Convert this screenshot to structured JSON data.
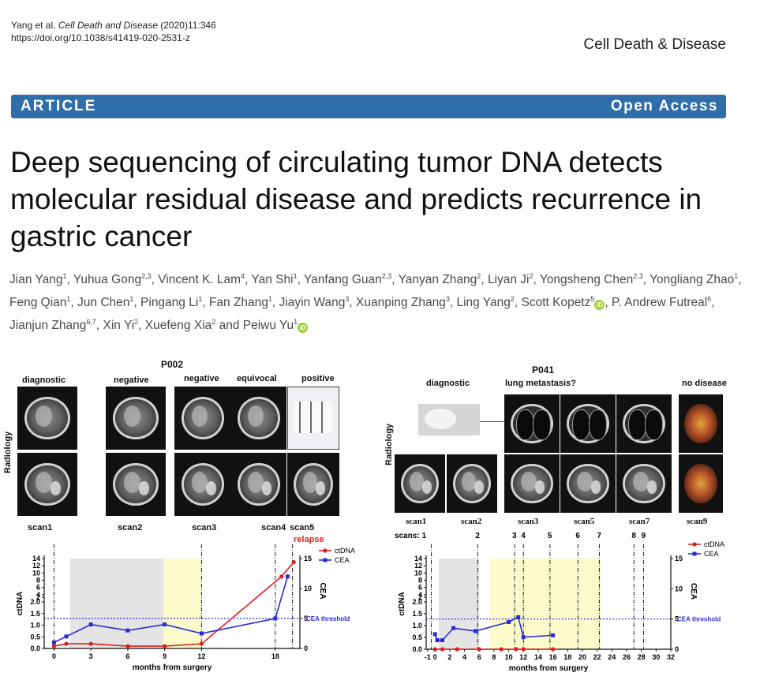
{
  "header": {
    "citation_authors": "Yang et al.",
    "citation_journal": "Cell Death and Disease",
    "citation_details": "(2020)11:346",
    "doi": "https://doi.org/10.1038/s41419-020-2531-z",
    "journal_name": "Cell Death & Disease"
  },
  "banner": {
    "article_type": "ARTICLE",
    "access": "Open Access"
  },
  "title": "Deep sequencing of circulating tumor DNA detects molecular residual disease and predicts recurrence in gastric cancer",
  "authors": [
    {
      "name": "Jian Yang",
      "aff": "1"
    },
    {
      "name": "Yuhua Gong",
      "aff": "2,3"
    },
    {
      "name": "Vincent K. Lam",
      "aff": "4"
    },
    {
      "name": "Yan Shi",
      "aff": "1"
    },
    {
      "name": "Yanfang Guan",
      "aff": "2,3"
    },
    {
      "name": "Yanyan Zhang",
      "aff": "2"
    },
    {
      "name": "Liyan Ji",
      "aff": "2"
    },
    {
      "name": "Yongsheng Chen",
      "aff": "2,3"
    },
    {
      "name": "Yongliang Zhao",
      "aff": "1"
    },
    {
      "name": "Feng Qian",
      "aff": "1"
    },
    {
      "name": "Jun Chen",
      "aff": "1"
    },
    {
      "name": "Pingang Li",
      "aff": "1"
    },
    {
      "name": "Fan Zhang",
      "aff": "1"
    },
    {
      "name": "Jiayin Wang",
      "aff": "3"
    },
    {
      "name": "Xuanping Zhang",
      "aff": "3"
    },
    {
      "name": "Ling Yang",
      "aff": "2"
    },
    {
      "name": "Scott Kopetz",
      "aff": "5",
      "orcid": true
    },
    {
      "name": "P. Andrew Futreal",
      "aff": "6"
    },
    {
      "name": "Jianjun Zhang",
      "aff": "6,7"
    },
    {
      "name": "Xin Yi",
      "aff": "2"
    },
    {
      "name": "Xuefeng Xia",
      "aff": "2"
    },
    {
      "name": "Peiwu Yu",
      "aff": "1",
      "orcid": true
    }
  ],
  "figure": {
    "orcid_glyph": "iD",
    "left": {
      "patient": "P002",
      "radiology_label": "Radiology",
      "statuses": [
        "diagnostic",
        "negative",
        "negative",
        "equivocal",
        "positive"
      ],
      "scans": [
        "scan1",
        "scan2",
        "scan3",
        "scan4",
        "scan5"
      ],
      "relapse_label": "relapse"
    },
    "right": {
      "patient": "P041",
      "radiology_label": "Radiology",
      "statuses": [
        "diagnostic",
        "lung metastasis?",
        "no disease"
      ],
      "scans": [
        "scan1",
        "scan2",
        "scan3",
        "scan5",
        "scan7",
        "scan9"
      ],
      "scans_prefix": "scans: 1",
      "scan_numbers": [
        "2",
        "3",
        "4",
        "5",
        "6",
        "7",
        "8",
        "9"
      ]
    }
  },
  "chart_data": [
    {
      "type": "line",
      "title": "P002",
      "xlabel": "months from surgery",
      "ylabel": "ctDNA",
      "y2label": "CEA",
      "x_ticks": [
        0,
        3,
        6,
        9,
        12,
        18
      ],
      "y_ticks": [
        "0.0",
        "0.5",
        "1.0",
        "1.5",
        "2.0",
        "2",
        "4",
        "6",
        "8",
        "10",
        "12",
        "14"
      ],
      "y2_ticks": [
        0,
        5,
        10,
        15
      ],
      "threshold_label": "CEA threshold",
      "threshold_value": 5,
      "legend": [
        "ctDNA",
        "CEA"
      ],
      "legend_position": "top-right",
      "series": [
        {
          "name": "ctDNA",
          "color": "#e01e1e",
          "x": [
            0,
            1,
            3,
            6,
            9,
            12,
            18.5,
            19.5
          ],
          "y": [
            0.1,
            0.2,
            0.2,
            0.1,
            0.1,
            0.2,
            9,
            13
          ]
        },
        {
          "name": "CEA",
          "color": "#2b2bd6",
          "x": [
            0,
            1,
            3,
            6,
            9,
            12,
            18,
            19
          ],
          "y": [
            1,
            2,
            4,
            3,
            4,
            2.5,
            5,
            12
          ]
        }
      ]
    },
    {
      "type": "line",
      "title": "P041",
      "xlabel": "months from surgery",
      "ylabel": "ctDNA",
      "y2label": "CEA",
      "x_ticks": [
        -1,
        2,
        5,
        8,
        11,
        14,
        17,
        20,
        23,
        26,
        29,
        32
      ],
      "x_ticks_printed": [
        "-1",
        "0",
        "2",
        "4",
        "6",
        "8",
        "10",
        "12",
        "14",
        "16",
        "18",
        "20",
        "22",
        "24",
        "26",
        "28",
        "30",
        "32"
      ],
      "y_ticks": [
        "0.0",
        "0.5",
        "1.0",
        "1.5",
        "2.0",
        "2",
        "4",
        "6",
        "8",
        "10",
        "12",
        "14"
      ],
      "y2_ticks": [
        0,
        5,
        10,
        15
      ],
      "threshold_label": "CEA threshold",
      "threshold_value": 5,
      "legend": [
        "ctDNA",
        "CEA"
      ],
      "legend_position": "top-right",
      "series": [
        {
          "name": "ctDNA",
          "color": "#e01e1e",
          "x": [
            0,
            1,
            3,
            6,
            9,
            11,
            12,
            16
          ],
          "y": [
            0,
            0,
            0,
            0,
            0,
            0,
            0,
            0
          ]
        },
        {
          "name": "CEA",
          "color": "#2b2bd6",
          "x": [
            0,
            0.3,
            1,
            2.5,
            5.5,
            10,
            11.3,
            12,
            16
          ],
          "y": [
            2.5,
            1.5,
            1.5,
            3.5,
            3,
            4.5,
            5.3,
            2,
            2.3
          ]
        }
      ]
    }
  ]
}
